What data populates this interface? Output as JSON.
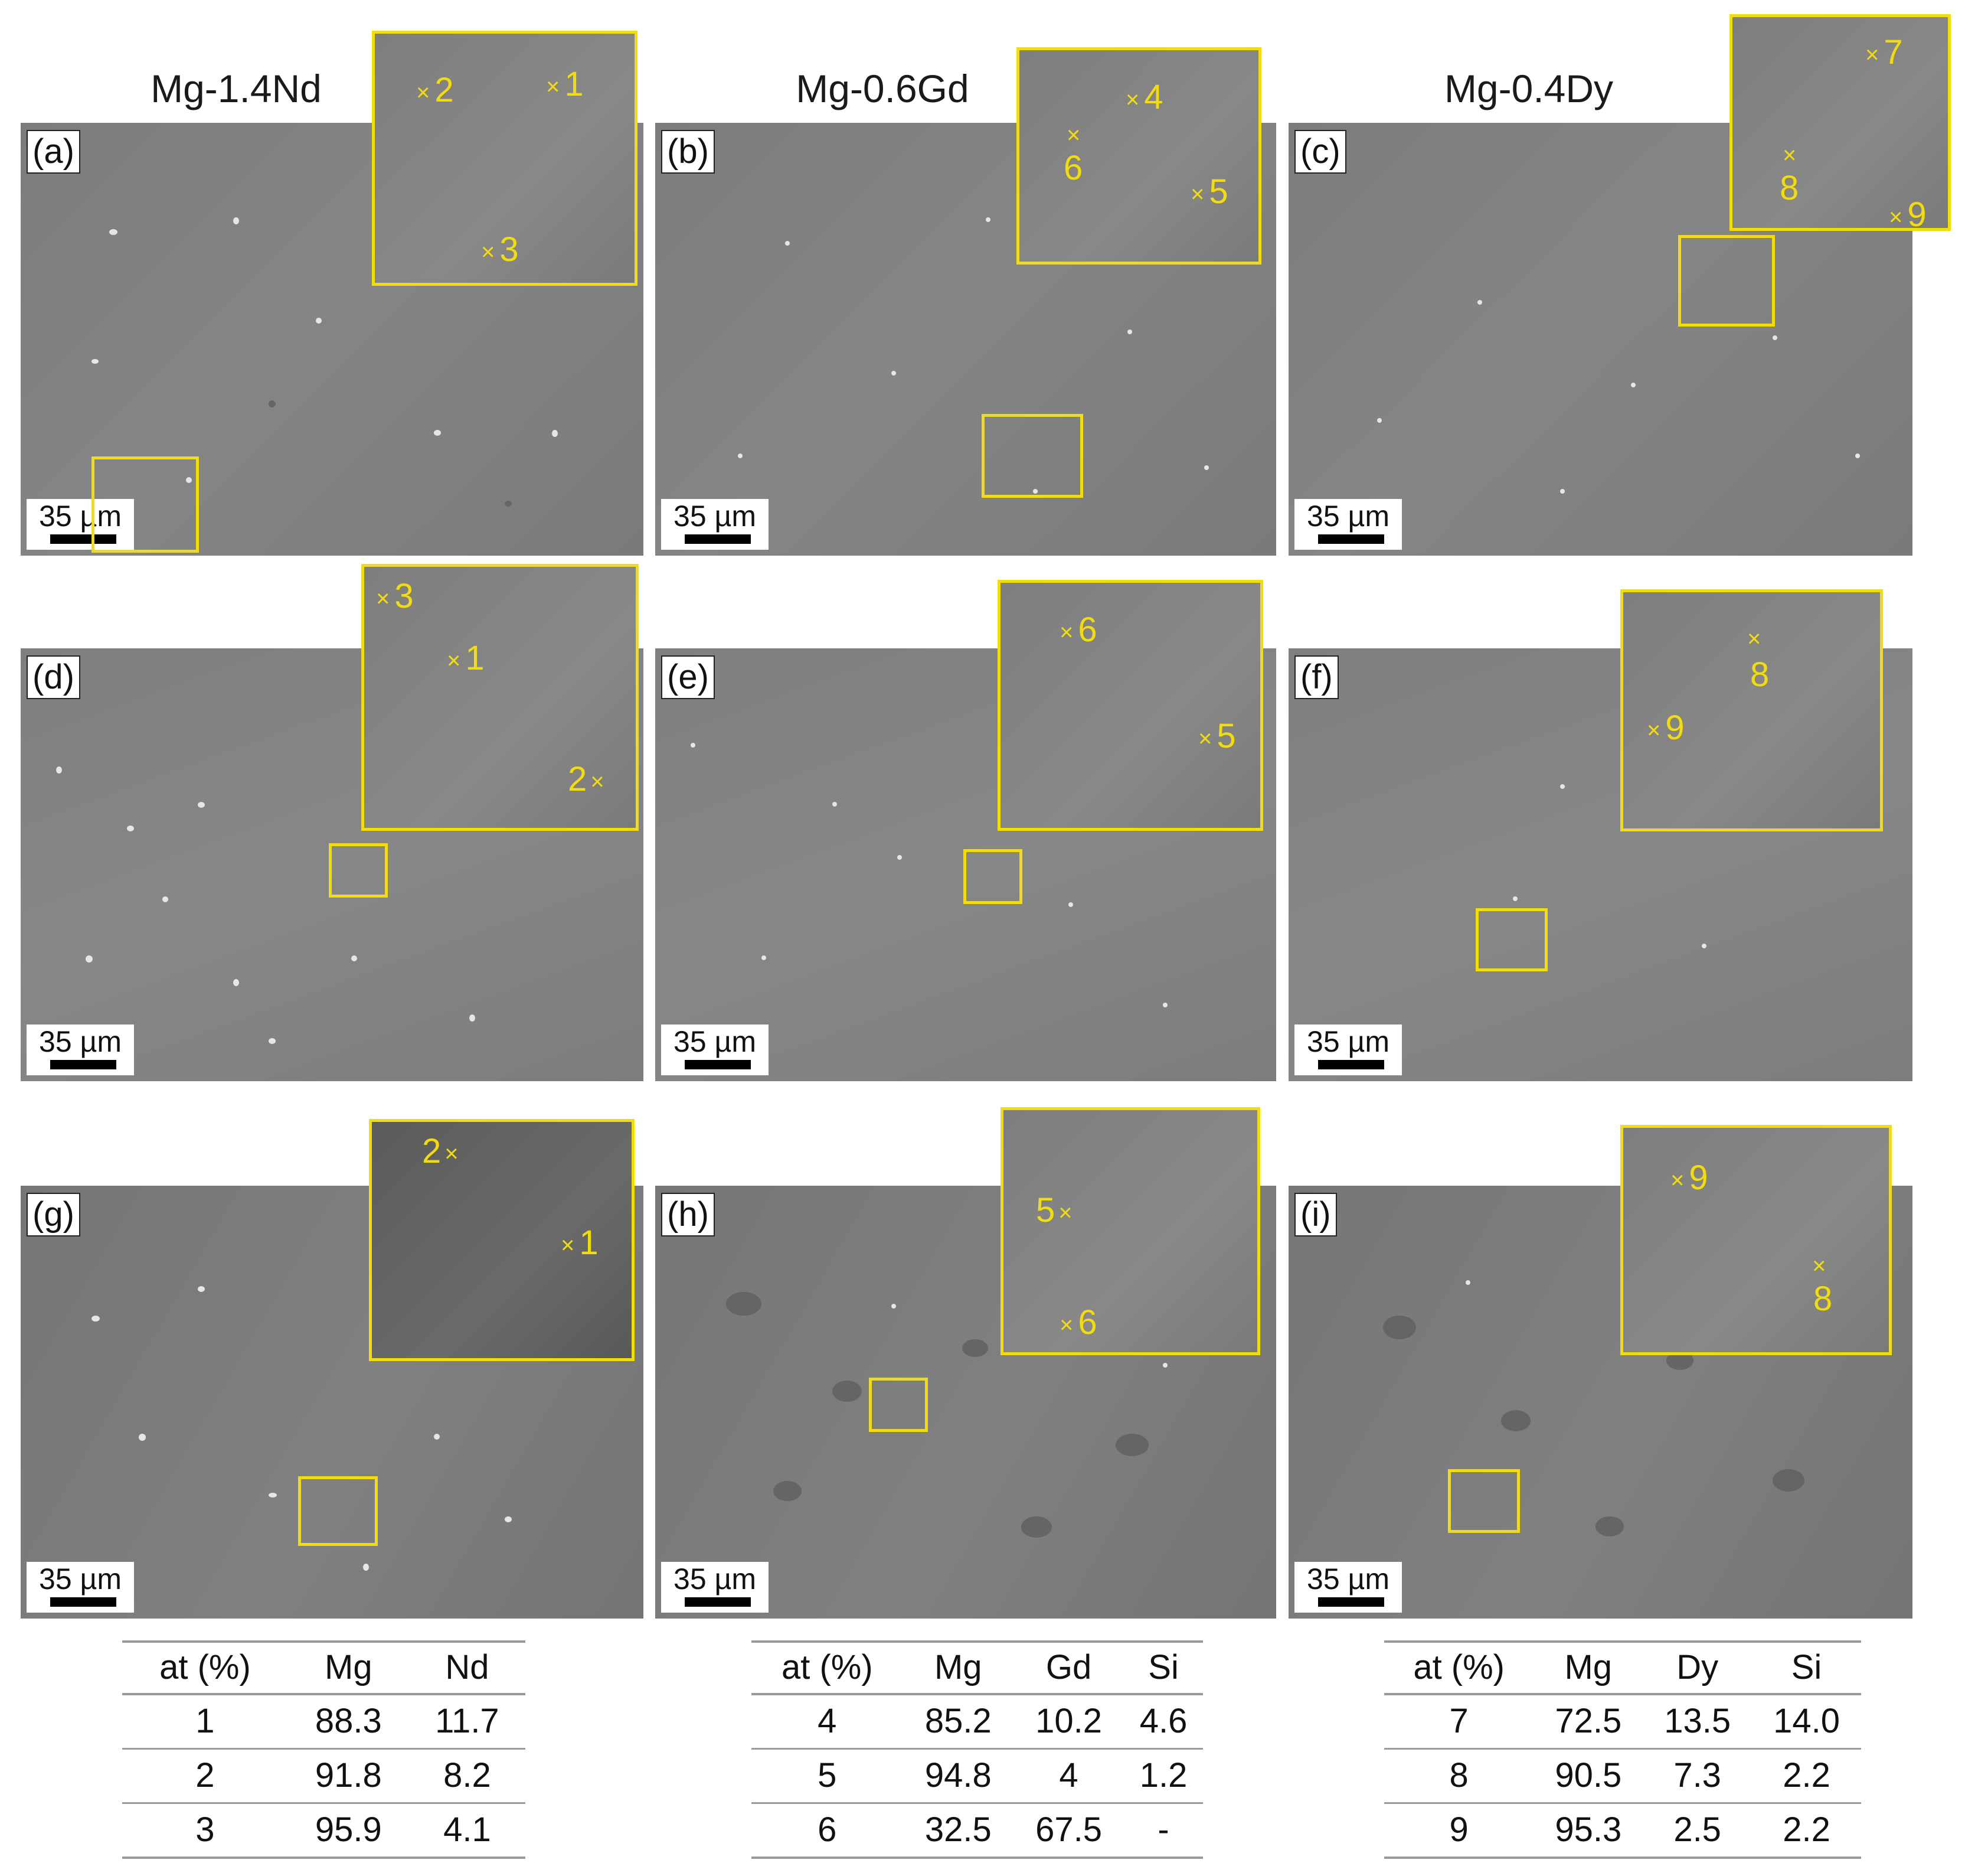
{
  "columns": [
    "Mg-1.4Nd",
    "Mg-0.6Gd",
    "Mg-0.4Dy"
  ],
  "panel_labels": [
    "(a)",
    "(b)",
    "(c)",
    "(d)",
    "(e)",
    "(f)",
    "(g)",
    "(h)",
    "(i)"
  ],
  "scale_bar": "35 µm",
  "inset_marks": {
    "a": [
      "1",
      "2",
      "3"
    ],
    "b": [
      "4",
      "5",
      "6"
    ],
    "c": [
      "7",
      "8",
      "9"
    ],
    "d": [
      "1",
      "2",
      "3"
    ],
    "e": [
      "5",
      "6"
    ],
    "f": [
      "8",
      "9"
    ],
    "g": [
      "1",
      "2"
    ],
    "h": [
      "5",
      "6"
    ],
    "i": [
      "8",
      "9"
    ]
  },
  "tables": [
    {
      "headers": [
        "at (%)",
        "Mg",
        "Nd"
      ],
      "rows": [
        [
          "1",
          "88.3",
          "11.7"
        ],
        [
          "2",
          "91.8",
          "8.2"
        ],
        [
          "3",
          "95.9",
          "4.1"
        ]
      ]
    },
    {
      "headers": [
        "at (%)",
        "Mg",
        "Gd",
        "Si"
      ],
      "rows": [
        [
          "4",
          "85.2",
          "10.2",
          "4.6"
        ],
        [
          "5",
          "94.8",
          "4",
          "1.2"
        ],
        [
          "6",
          "32.5",
          "67.5",
          "-"
        ]
      ]
    },
    {
      "headers": [
        "at (%)",
        "Mg",
        "Dy",
        "Si"
      ],
      "rows": [
        [
          "7",
          "72.5",
          "13.5",
          "14.0"
        ],
        [
          "8",
          "90.5",
          "7.3",
          "2.2"
        ],
        [
          "9",
          "95.3",
          "2.5",
          "2.2"
        ]
      ]
    }
  ],
  "colors": {
    "annotation": "#f2dc0a",
    "micrograph": "#808080"
  }
}
